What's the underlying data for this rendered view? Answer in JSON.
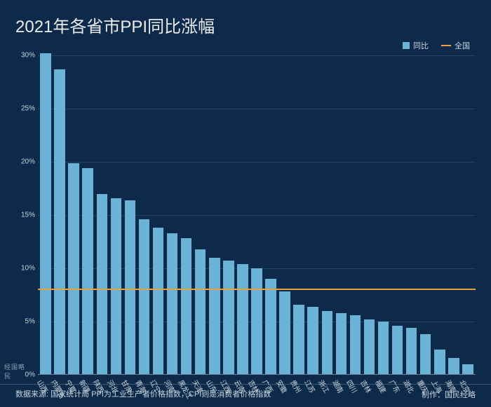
{
  "title": "2021年各省市PPI同比涨幅",
  "legend": {
    "bar_label": "同比",
    "line_label": "全国",
    "bar_color": "#6bb3d6",
    "line_color": "#e8a13a"
  },
  "chart": {
    "type": "bar",
    "background_color": "#0d2a4a",
    "grid_color": "rgba(120,150,170,0.22)",
    "axis_label_color": "#c8d4dc",
    "bar_color": "#6bb3d6",
    "national_line_color": "#e8a13a",
    "national_line_value": 8.1,
    "ylim": [
      0,
      30
    ],
    "ytick_step": 5,
    "ytick_suffix": "%",
    "categories": [
      "山西",
      "内蒙古",
      "宁夏",
      "新疆",
      "陕西",
      "河北",
      "甘肃",
      "青海",
      "辽宁",
      "河南",
      "黑龙江",
      "天津",
      "山东",
      "江西",
      "云南",
      "吉林",
      "广西",
      "安徽",
      "贵州",
      "江苏",
      "浙江",
      "湖南",
      "四川",
      "吉林",
      "福建",
      "广东",
      "湖北",
      "重庆",
      "上海",
      "海南",
      "北京"
    ],
    "values": [
      30.2,
      28.7,
      19.9,
      19.4,
      17.0,
      16.6,
      16.4,
      14.6,
      13.8,
      13.3,
      12.8,
      11.8,
      11.0,
      10.7,
      10.4,
      10.0,
      9.0,
      7.8,
      6.6,
      6.4,
      6.0,
      5.8,
      5.6,
      5.2,
      5.0,
      4.6,
      4.4,
      3.8,
      2.4,
      1.6,
      1.0
    ]
  },
  "footer": {
    "source": "数据来源: 国家统计局  PPI为工业生产者价格指数，CPI则是消费者价格指数",
    "credit": "制作：国民经略",
    "logo_text": "经国略民"
  }
}
